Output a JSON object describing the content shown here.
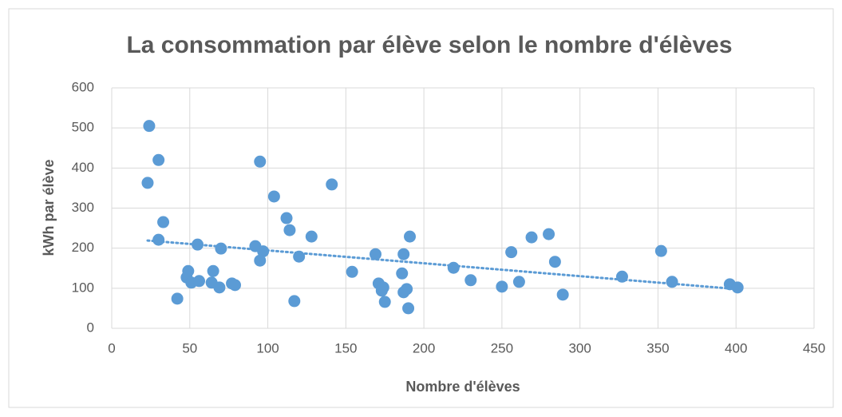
{
  "chart_data": {
    "type": "scatter",
    "title": "La consommation par élève selon le nombre d'élèves",
    "x_label": "Nombre d'élèves",
    "y_label": "kWh par élève",
    "xlim": [
      0,
      450
    ],
    "xticks": [
      0,
      50,
      100,
      150,
      200,
      250,
      300,
      350,
      400,
      450
    ],
    "ylim": [
      0,
      600
    ],
    "yticks": [
      0,
      100,
      200,
      300,
      400,
      500,
      600
    ],
    "grid": true,
    "trendline": "linear",
    "series": [
      {
        "color": "#5b9bd5",
        "x": [
          24,
          30,
          23,
          33,
          30,
          55,
          70,
          49,
          48,
          51,
          56,
          65,
          64,
          69,
          77,
          79,
          42,
          95,
          104,
          112,
          114,
          92,
          97,
          95,
          120,
          117,
          128,
          141,
          154,
          169,
          171,
          174,
          173,
          175,
          187,
          186,
          187,
          189,
          191,
          190,
          219,
          230,
          250,
          256,
          261,
          269,
          280,
          284,
          289,
          327,
          352,
          359,
          396,
          401
        ],
        "values": [
          505,
          420,
          363,
          265,
          221,
          209,
          199,
          143,
          127,
          114,
          118,
          143,
          114,
          102,
          112,
          108,
          74,
          416,
          329,
          275,
          245,
          205,
          192,
          169,
          179,
          68,
          229,
          359,
          141,
          185,
          112,
          102,
          94,
          66,
          185,
          137,
          90,
          98,
          229,
          50,
          151,
          120,
          104,
          190,
          116,
          227,
          235,
          166,
          84,
          129,
          193,
          116,
          110,
          102
        ]
      }
    ]
  }
}
